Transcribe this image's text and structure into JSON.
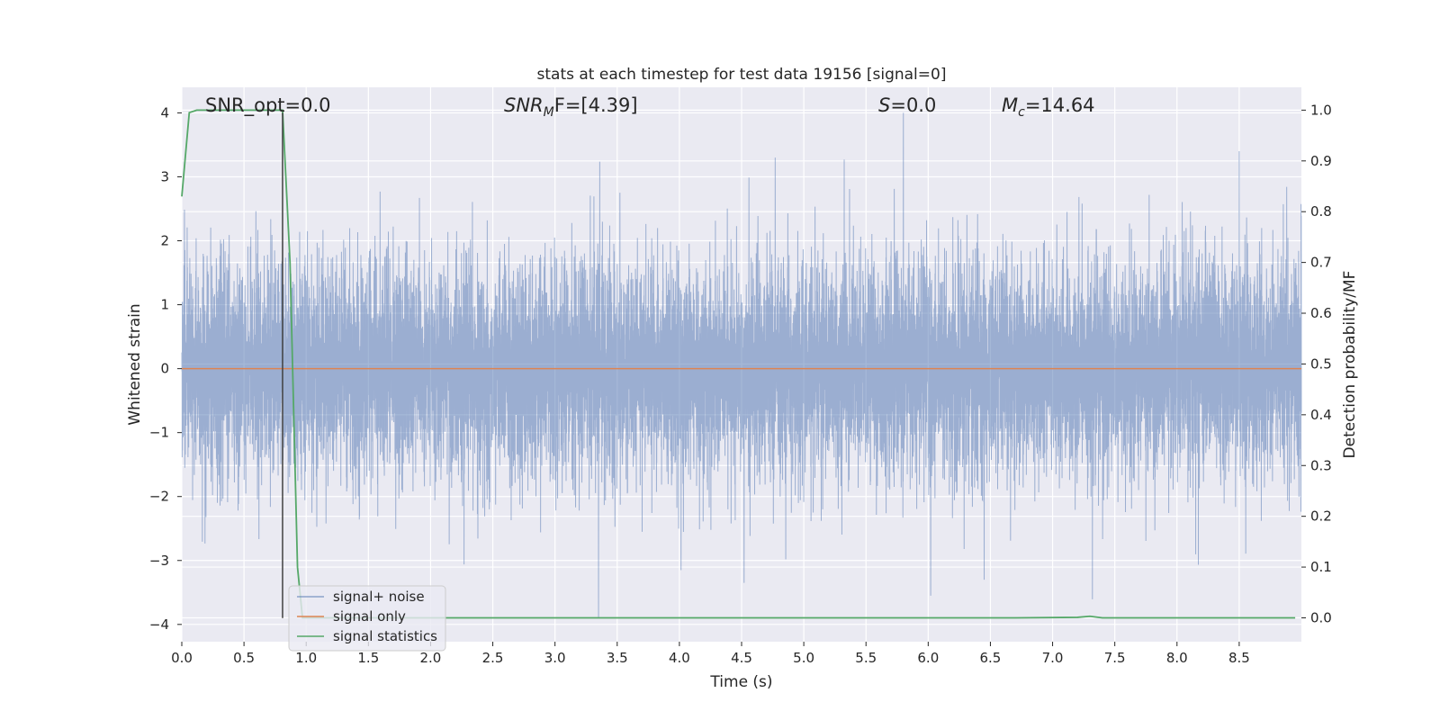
{
  "chart_data": {
    "type": "line",
    "title": "stats at each timestep for test data 19156 [signal=0]",
    "xlabel": "Time (s)",
    "ylabel": "Whitened strain",
    "ylabel_right": "Detection probability/MF",
    "xlim": [
      0.0,
      9.0
    ],
    "ylim": [
      -4.27,
      4.4
    ],
    "ylim_right": [
      -0.047,
      1.045
    ],
    "x_ticks": [
      0.0,
      0.5,
      1.0,
      1.5,
      2.0,
      2.5,
      3.0,
      3.5,
      4.0,
      4.5,
      5.0,
      5.5,
      6.0,
      6.5,
      7.0,
      7.5,
      8.0,
      8.5
    ],
    "x_tick_labels": [
      "0.0",
      "0.5",
      "1.0",
      "1.5",
      "2.0",
      "2.5",
      "3.0",
      "3.5",
      "4.0",
      "4.5",
      "5.0",
      "5.5",
      "6.0",
      "6.5",
      "7.0",
      "7.5",
      "8.0",
      "8.5"
    ],
    "y_ticks": [
      4,
      3,
      2,
      1,
      0,
      -1,
      -2,
      -3,
      -4
    ],
    "y_tick_labels": [
      "4",
      "3",
      "2",
      "1",
      "0",
      "−1",
      "−2",
      "−3",
      "−4"
    ],
    "y_ticks_right": [
      1.0,
      0.9,
      0.8,
      0.7,
      0.6,
      0.5,
      0.4,
      0.3,
      0.2,
      0.1,
      0.0
    ],
    "y_tick_labels_right": [
      "1.0",
      "0.9",
      "0.8",
      "0.7",
      "0.6",
      "0.5",
      "0.4",
      "0.3",
      "0.2",
      "0.1",
      "0.0"
    ],
    "annotations": [
      {
        "key": "snr-opt",
        "text": "SNR_opt=0.0"
      },
      {
        "key": "snr-mf",
        "text": "SNR_MF=[4.39]",
        "base": "SNR",
        "sub": "M",
        "rest": "F=[4.39]"
      },
      {
        "key": "s",
        "text": "S=0.0",
        "base": "S",
        "rest": "=0.0"
      },
      {
        "key": "mc",
        "text": "M_c=14.64",
        "base": "M",
        "sub": "c",
        "rest": "=14.64"
      }
    ],
    "marker_line": {
      "x": 0.81,
      "y_range": [
        -3.9,
        4.0
      ],
      "axis": "left"
    },
    "series": [
      {
        "name": "signal+ noise",
        "color": "#4c72b0",
        "axis": "left",
        "kind": "dense_noise",
        "sample_rate_hz": 2048,
        "std": 0.9,
        "min_value": -3.9,
        "max_value": 4.0,
        "notable_peaks": [
          {
            "x": 5.8,
            "y": 4.0
          },
          {
            "x": 8.5,
            "y": 3.4
          },
          {
            "x": 4.77,
            "y": 3.3
          },
          {
            "x": 3.35,
            "y": -3.9
          },
          {
            "x": 6.02,
            "y": -3.55
          },
          {
            "x": 4.52,
            "y": -3.35
          },
          {
            "x": 6.45,
            "y": -3.3
          }
        ]
      },
      {
        "name": "signal only",
        "color": "#dd8452",
        "axis": "left",
        "x": [
          0.0,
          9.0
        ],
        "y": [
          0.0,
          0.0
        ]
      },
      {
        "name": "signal statistics",
        "color": "#55a868",
        "axis": "right",
        "x": [
          0.0,
          0.06,
          0.12,
          0.81,
          0.87,
          0.93,
          0.97,
          6.7,
          7.2,
          7.3,
          7.4,
          8.95
        ],
        "y": [
          0.83,
          0.995,
          1.0,
          1.0,
          0.7,
          0.1,
          0.0,
          0.0,
          0.001,
          0.003,
          0.0,
          0.0
        ]
      }
    ],
    "legend": {
      "placement": "lower-left",
      "entries": [
        {
          "label": "signal+ noise",
          "color": "#4c72b0"
        },
        {
          "label": "signal only",
          "color": "#dd8452"
        },
        {
          "label": "signal statistics",
          "color": "#55a868"
        }
      ]
    },
    "grid": true,
    "style": {
      "background": "#eaeaf2",
      "grid_color": "#ffffff",
      "marker_color": "#404040"
    }
  }
}
